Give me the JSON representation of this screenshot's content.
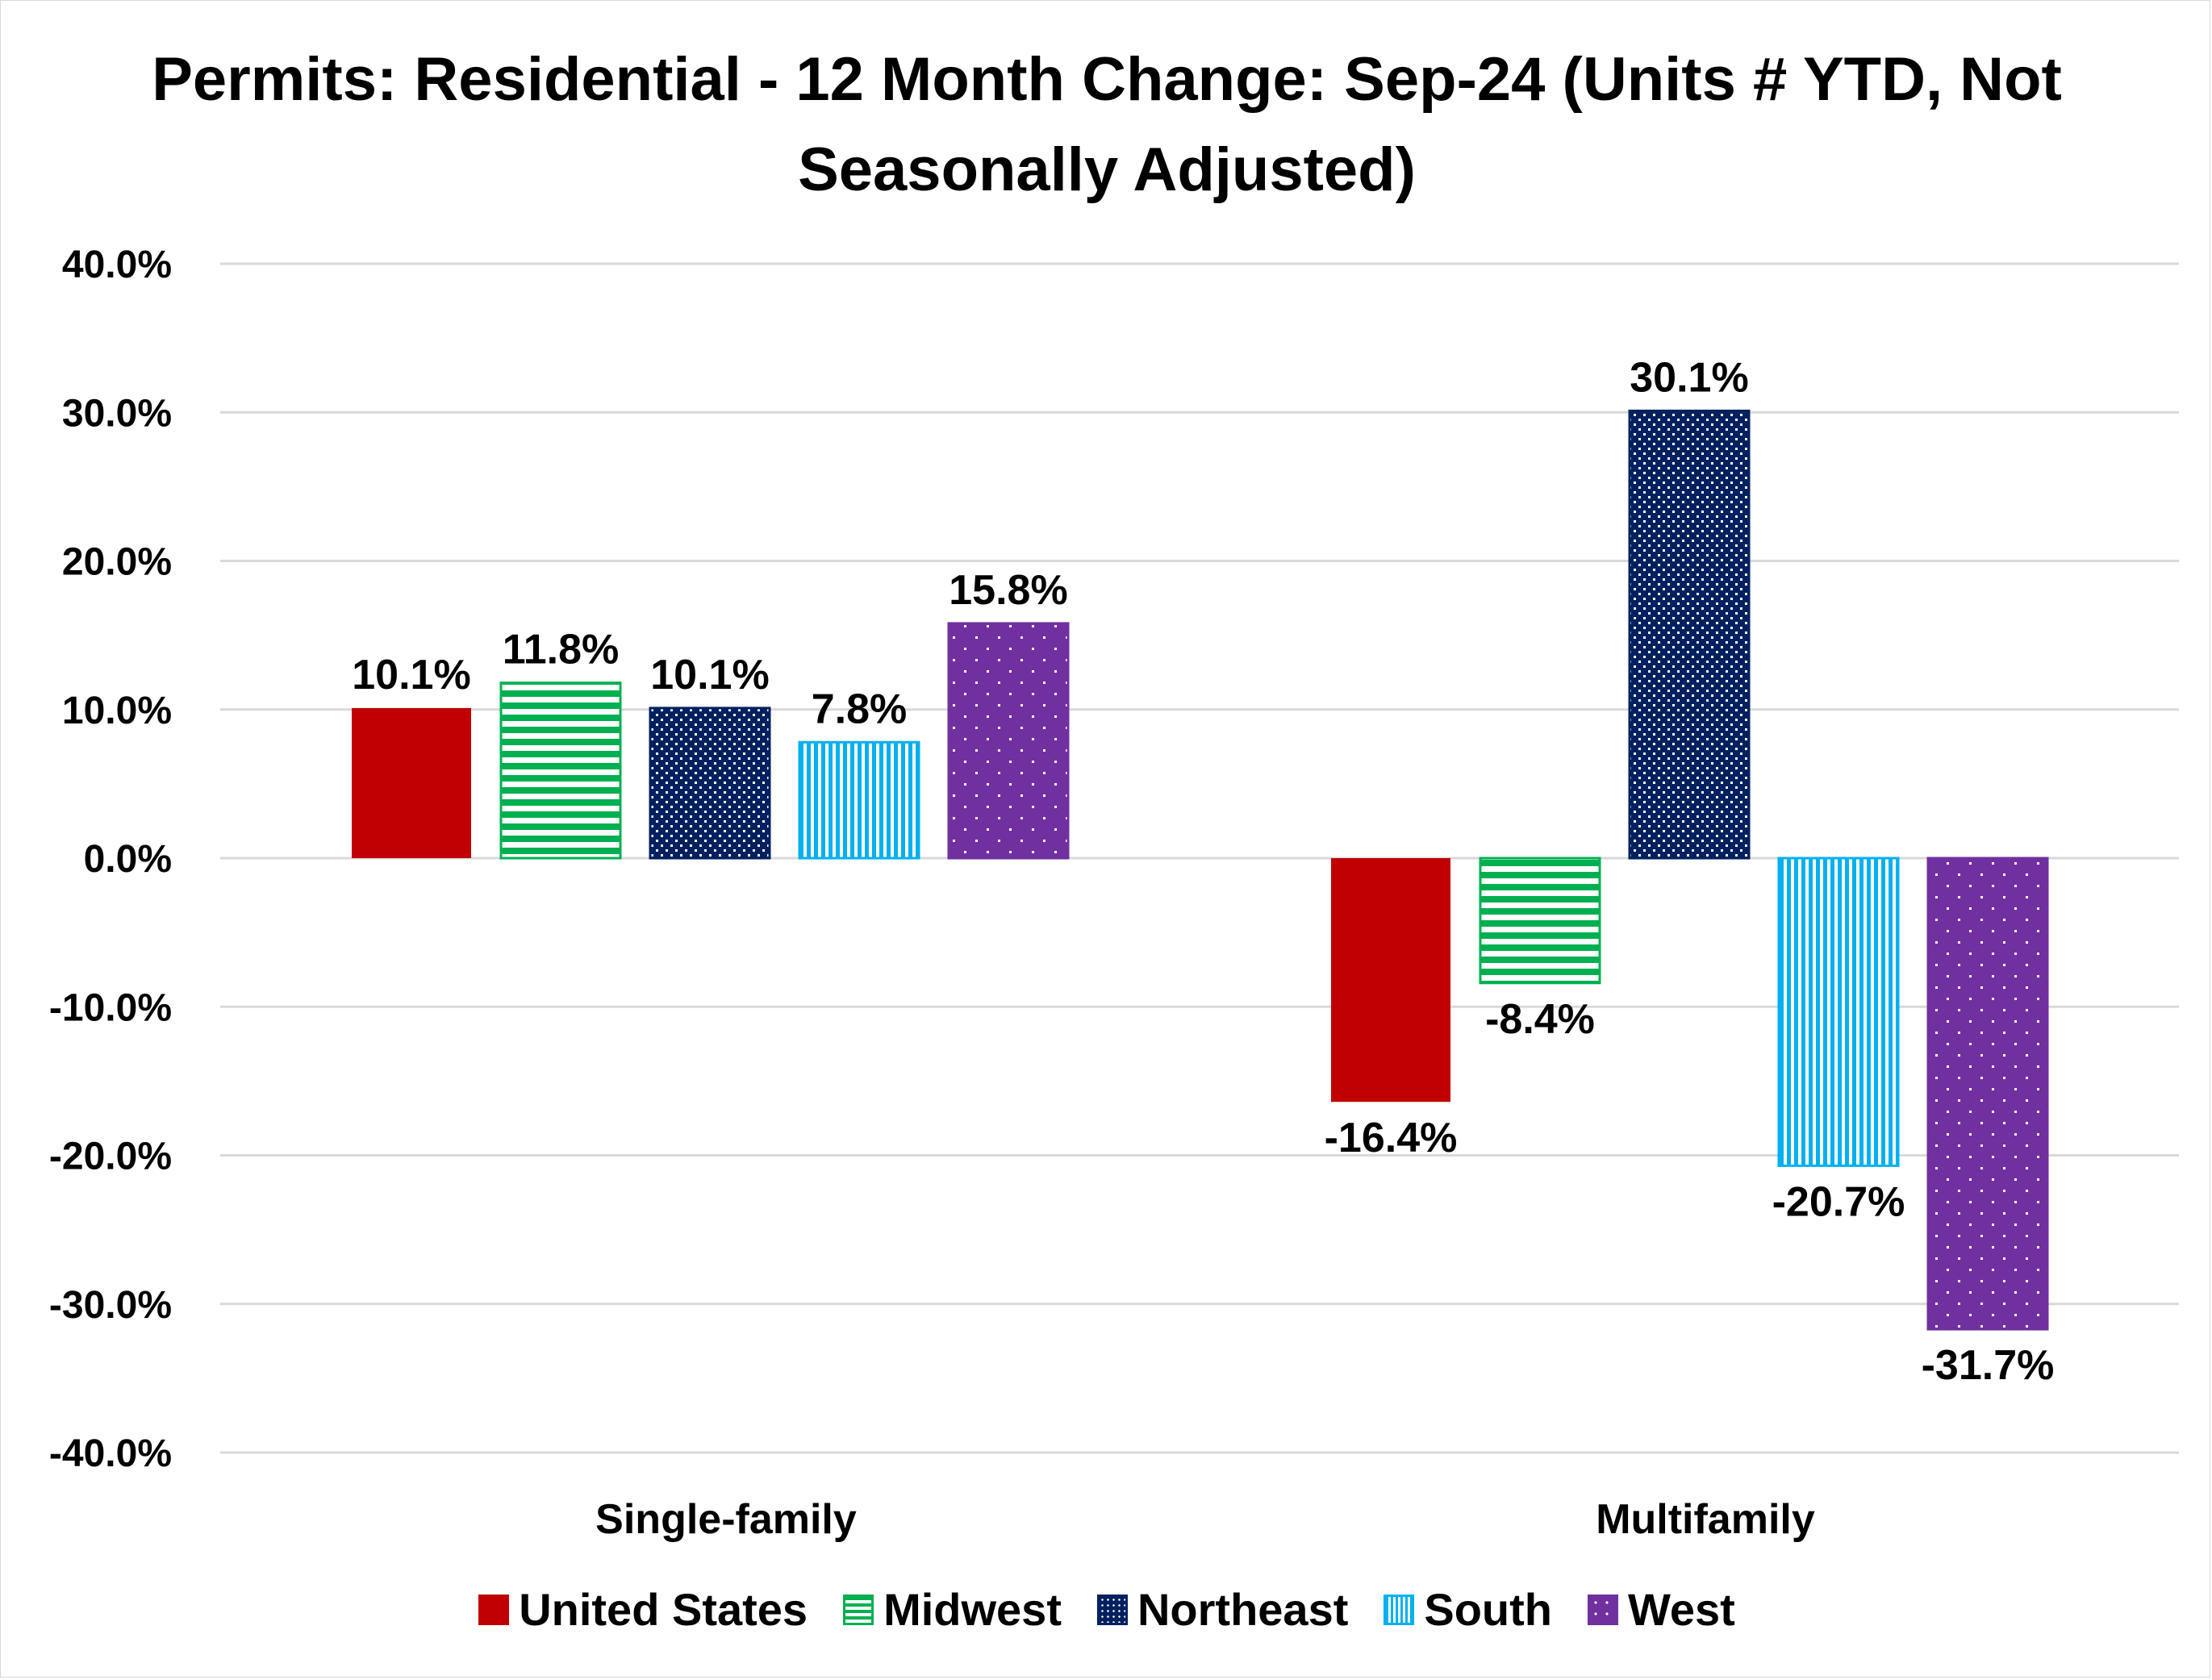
{
  "chart_data": {
    "type": "bar",
    "title": "Permits: Residential - 12 Month Change:  Sep-24 (Units # YTD, Not Seasonally Adjusted)",
    "categories": [
      "Single-family",
      "Multifamily"
    ],
    "series": [
      {
        "name": "United States",
        "values": [
          10.1,
          -16.4
        ],
        "labels": [
          "10.1%",
          "-16.4%"
        ],
        "color": "#c00000",
        "pattern": "solid"
      },
      {
        "name": "Midwest",
        "values": [
          11.8,
          -8.4
        ],
        "labels": [
          "11.8%",
          "-8.4%"
        ],
        "color": "#00b050",
        "pattern": "horizontal-stripes"
      },
      {
        "name": "Northeast",
        "values": [
          10.1,
          30.1
        ],
        "labels": [
          "10.1%",
          "30.1%"
        ],
        "color": "#002060",
        "pattern": "dots-dense"
      },
      {
        "name": "South",
        "values": [
          7.8,
          -20.7
        ],
        "labels": [
          "7.8%",
          "-20.7%"
        ],
        "color": "#00b0f0",
        "pattern": "vertical-stripes"
      },
      {
        "name": "West",
        "values": [
          15.8,
          -31.7
        ],
        "labels": [
          "15.8%",
          "-31.7%"
        ],
        "color": "#7030a0",
        "pattern": "dots-sparse"
      }
    ],
    "ylim": [
      -40,
      40
    ],
    "yticks": [
      "40.0%",
      "30.0%",
      "20.0%",
      "10.0%",
      "0.0%",
      "-10.0%",
      "-20.0%",
      "-30.0%",
      "-40.0%"
    ],
    "ytick_values": [
      40,
      30,
      20,
      10,
      0,
      -10,
      -20,
      -30,
      -40
    ],
    "xlabel": "",
    "ylabel": "",
    "grid": true,
    "legend_position": "bottom"
  }
}
